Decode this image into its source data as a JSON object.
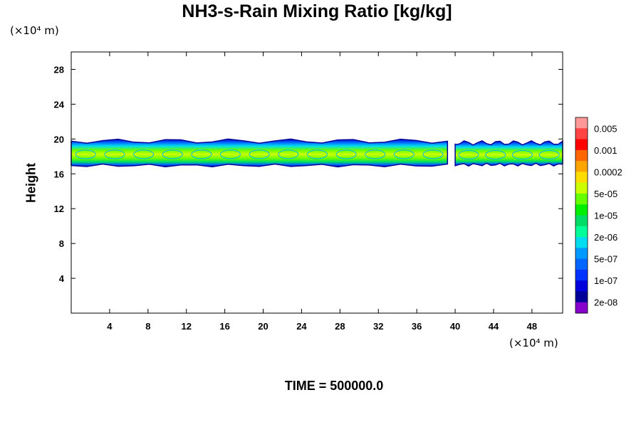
{
  "chart_data": {
    "type": "contour",
    "title": "NH3-s-Rain Mixing Ratio [kg/kg]",
    "ylabel": "Height",
    "x_unit_label": "(×10⁴ m)",
    "y_unit_label": "(×10⁴ m)",
    "xlim": [
      0,
      51.2
    ],
    "ylim": [
      0,
      30
    ],
    "x_ticks": [
      4,
      8,
      12,
      16,
      20,
      24,
      28,
      32,
      36,
      40,
      44,
      48
    ],
    "y_ticks": [
      4,
      8,
      12,
      16,
      20,
      24,
      28
    ],
    "footer": "TIME = 500000.0",
    "colorbar": {
      "labels": [
        "0.005",
        "0.001",
        "0.0002",
        "5e-05",
        "1e-05",
        "2e-06",
        "5e-07",
        "1e-07",
        "2e-08"
      ],
      "colors_top_to_bottom": [
        "#ff9999",
        "#ff4444",
        "#ff0000",
        "#ff6600",
        "#ffa500",
        "#ffdd00",
        "#ccff00",
        "#66ff00",
        "#00ee00",
        "#00dd66",
        "#00ff99",
        "#00ddee",
        "#0099ff",
        "#0066ff",
        "#0033ff",
        "#0000dd",
        "#000099",
        "#8800cc"
      ]
    },
    "layer": {
      "description": "cloud band between ~17 and ~20 (x10^4 m), gap near x=40",
      "segments": [
        {
          "x_start": 0,
          "x_end": 39.2,
          "y_bottom": 16.8,
          "y_top": 20.0
        },
        {
          "x_start": 40.0,
          "x_end": 51.2,
          "y_bottom": 16.9,
          "y_top": 19.8
        }
      ]
    }
  }
}
